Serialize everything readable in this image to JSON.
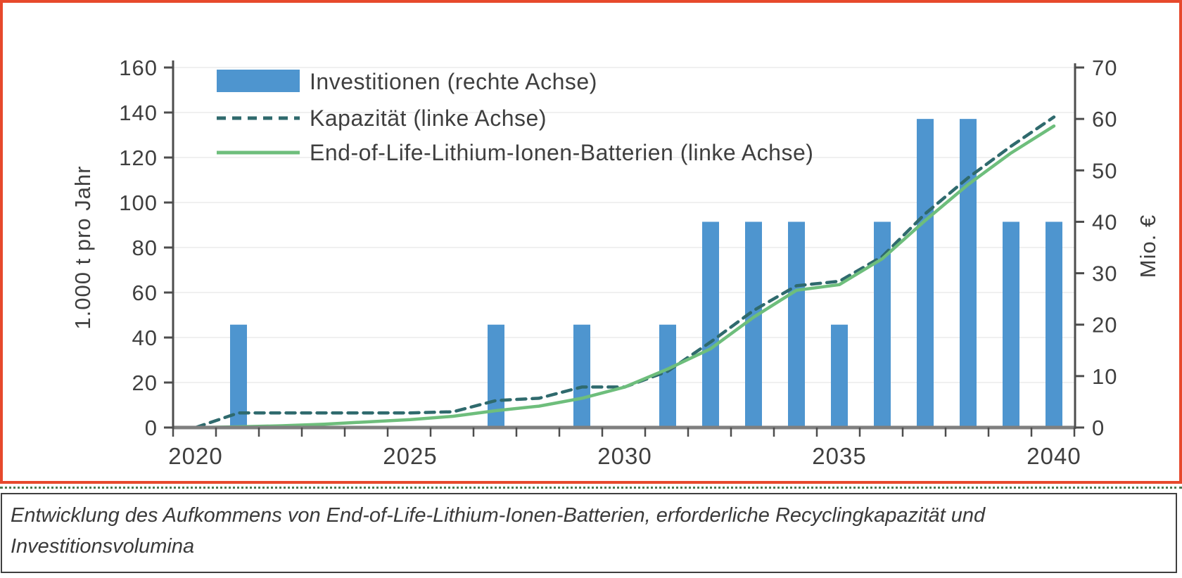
{
  "caption": {
    "line1": "Entwicklung des Aufkommens von End-of-Life-Lithium-Ionen-Batterien, erforderliche Recyclingkapazität und",
    "line2": "Investitionsvolumina"
  },
  "colors": {
    "panel_border": "#e7492c",
    "separator": "#4a7a52",
    "caption_border": "#3f3f3f",
    "caption_text": "#3a3a3a",
    "gridline": "#f0f0f0",
    "axis_side": "#4d4d4d",
    "axis_base": "#7f7f7f",
    "tick_mark": "#4d4d4d",
    "tick_text": "#3f3f3f"
  },
  "chart_data": {
    "type": "bar+line combo",
    "title": "",
    "years": [
      2020,
      2021,
      2022,
      2023,
      2024,
      2025,
      2026,
      2027,
      2028,
      2029,
      2030,
      2031,
      2032,
      2033,
      2034,
      2035,
      2036,
      2037,
      2038,
      2039,
      2040
    ],
    "x_axis": {
      "tick_years": [
        2020,
        2025,
        2030,
        2035,
        2040
      ],
      "tick_labels": [
        "2020",
        "2025",
        "2030",
        "2035",
        "2040"
      ]
    },
    "left_axis": {
      "label": "1.000 t pro Jahr",
      "min": 0,
      "max": 160,
      "step": 20,
      "ticks": [
        "0",
        "20",
        "40",
        "60",
        "80",
        "100",
        "120",
        "140",
        "160"
      ]
    },
    "right_axis": {
      "label": "Mio. €",
      "min": 0,
      "max": 70,
      "step": 10,
      "ticks": [
        "0",
        "10",
        "20",
        "30",
        "40",
        "50",
        "60",
        "70"
      ]
    },
    "grid": "horizontal only",
    "legend_position": "top-left inside plot",
    "series": [
      {
        "name": "Investitionen (rechte Achse)",
        "type": "bar",
        "axis": "right",
        "color": "#4e95cf",
        "values": [
          null,
          20,
          null,
          null,
          null,
          null,
          null,
          20,
          null,
          20,
          null,
          20,
          40,
          40,
          40,
          20,
          40,
          60,
          60,
          40,
          40
        ]
      },
      {
        "name": "Kapazität (linke Achse)",
        "type": "line",
        "dash": true,
        "axis": "left",
        "color": "#2f6a6d",
        "values": [
          0,
          6.5,
          6.5,
          6.5,
          6.5,
          6.5,
          7,
          12,
          13,
          18,
          18,
          25,
          38,
          52,
          63,
          65,
          76,
          95,
          111,
          125,
          138
        ]
      },
      {
        "name": "End-of-Life-Lithium-Ionen-Batterien (linke Achse)",
        "type": "line",
        "dash": false,
        "axis": "left",
        "color": "#6ebe7c",
        "values": [
          0,
          0.3,
          0.8,
          1.5,
          2.5,
          3.5,
          5,
          7.5,
          9.5,
          13,
          18,
          26,
          35,
          49,
          61,
          63.5,
          75,
          92,
          108,
          122,
          134
        ]
      }
    ]
  }
}
